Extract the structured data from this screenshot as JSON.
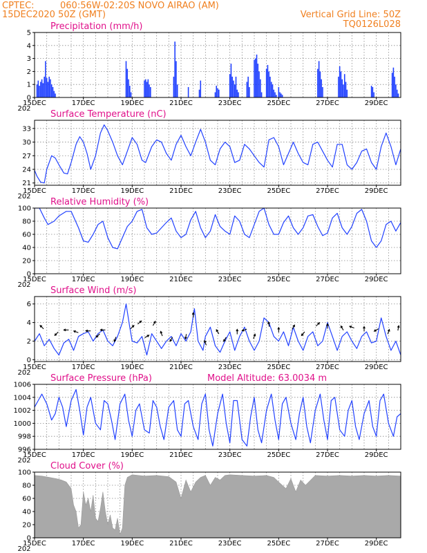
{
  "header": {
    "source": "CPTEC:",
    "location": "060:56W-02:20S   NOVO AIRAO (AM)",
    "run": "15DEC2020 50Z (GMT)",
    "grid_note": "Vertical Grid Line: 50Z",
    "code": "TQ0126L028"
  },
  "colors": {
    "header": "#f08020",
    "title": "#e0108a",
    "series": "#2040ff",
    "cloud": "#a9a9a9",
    "grid": "#888888"
  },
  "x_axis": {
    "ticks": [
      "15DEC",
      "17DEC",
      "19DEC",
      "21DEC",
      "23DEC",
      "25DEC",
      "27DEC",
      "29DEC"
    ],
    "tick_days": [
      15,
      17,
      19,
      21,
      23,
      25,
      27,
      29
    ],
    "range_days": [
      15,
      30
    ],
    "year_stub": "202"
  },
  "chart_data": [
    {
      "type": "bar",
      "title": "Precipitation (mm/h)",
      "ylim": [
        0,
        5
      ],
      "yticks": [
        "0",
        "1",
        "2",
        "3",
        "4",
        "5"
      ],
      "x": [
        15.1,
        15.15,
        15.2,
        15.25,
        15.3,
        15.35,
        15.4,
        15.45,
        15.5,
        15.55,
        15.6,
        15.65,
        15.7,
        15.75,
        15.8,
        15.85,
        18.75,
        18.8,
        18.85,
        18.9,
        18.95,
        19.5,
        19.55,
        19.6,
        19.65,
        19.7,
        19.75,
        20.7,
        20.75,
        20.8,
        20.85,
        21.3,
        21.75,
        21.8,
        22.4,
        22.45,
        22.5,
        22.55,
        23.0,
        23.05,
        23.1,
        23.15,
        23.2,
        23.25,
        23.3,
        23.35,
        23.7,
        23.75,
        23.8,
        24.0,
        24.05,
        24.1,
        24.15,
        24.2,
        24.25,
        24.3,
        24.5,
        24.55,
        24.6,
        24.65,
        24.7,
        24.75,
        24.8,
        24.85,
        24.9,
        25.0,
        25.05,
        25.1,
        25.15,
        26.6,
        26.65,
        26.7,
        26.75,
        26.8,
        27.45,
        27.5,
        27.55,
        27.6,
        27.65,
        27.7,
        27.75,
        27.8,
        28.8,
        28.85,
        28.9,
        29.65,
        29.7,
        29.75,
        29.8,
        29.85,
        29.9
      ],
      "values": [
        1.0,
        1.3,
        0.9,
        1.2,
        1.4,
        1.1,
        1.6,
        2.8,
        1.5,
        1.2,
        1.6,
        1.4,
        1.0,
        0.8,
        0.5,
        0.3,
        2.8,
        2.2,
        1.4,
        0.9,
        0.4,
        1.3,
        1.4,
        1.2,
        1.4,
        1.0,
        0.8,
        1.6,
        4.3,
        2.8,
        1.0,
        0.8,
        0.6,
        1.3,
        0.4,
        0.9,
        0.7,
        0.6,
        1.8,
        2.6,
        1.6,
        1.3,
        1.0,
        1.6,
        0.6,
        0.4,
        1.2,
        1.6,
        0.8,
        2.9,
        3.0,
        3.3,
        2.6,
        2.0,
        1.4,
        0.4,
        2.2,
        2.5,
        2.0,
        1.6,
        1.2,
        1.0,
        0.6,
        0.4,
        0.2,
        0.8,
        0.4,
        0.3,
        0.2,
        2.2,
        2.8,
        2.0,
        1.4,
        0.8,
        1.6,
        2.4,
        2.0,
        1.4,
        1.0,
        1.8,
        1.2,
        0.6,
        0.9,
        0.8,
        0.4,
        1.9,
        2.3,
        1.6,
        1.0,
        0.6,
        0.3
      ]
    },
    {
      "type": "line",
      "title": "Surface Temperature (nC)",
      "ylim": [
        20.5,
        34.8
      ],
      "yticks": [
        "21",
        "24",
        "27",
        "30",
        "33"
      ],
      "ytick_values": [
        21,
        24,
        27,
        30,
        33
      ],
      "x": [
        15.0,
        15.1,
        15.25,
        15.4,
        15.5,
        15.7,
        15.85,
        16.0,
        16.2,
        16.35,
        16.5,
        16.7,
        16.85,
        17.0,
        17.15,
        17.3,
        17.5,
        17.7,
        17.85,
        18.0,
        18.2,
        18.4,
        18.6,
        18.8,
        19.0,
        19.2,
        19.4,
        19.55,
        19.8,
        20.0,
        20.2,
        20.4,
        20.6,
        20.8,
        21.0,
        21.2,
        21.4,
        21.6,
        21.8,
        22.0,
        22.2,
        22.4,
        22.6,
        22.8,
        23.0,
        23.2,
        23.4,
        23.6,
        23.8,
        24.0,
        24.2,
        24.4,
        24.6,
        24.8,
        25.0,
        25.2,
        25.4,
        25.6,
        25.8,
        26.0,
        26.2,
        26.4,
        26.6,
        26.8,
        27.0,
        27.2,
        27.4,
        27.6,
        27.8,
        28.0,
        28.2,
        28.4,
        28.6,
        28.8,
        29.0,
        29.2,
        29.4,
        29.6,
        29.8,
        30.0
      ],
      "values": [
        23.8,
        22.5,
        21.2,
        21.0,
        24.0,
        27.0,
        26.5,
        25.0,
        23.2,
        23.0,
        25.5,
        29.5,
        31.2,
        30.0,
        27.5,
        24.0,
        27.0,
        32.0,
        33.8,
        32.5,
        30.0,
        27.0,
        25.0,
        28.0,
        31.0,
        29.5,
        26.0,
        25.5,
        29.0,
        30.5,
        30.0,
        27.5,
        26.0,
        29.5,
        31.5,
        29.0,
        27.0,
        30.0,
        32.8,
        30.0,
        26.0,
        25.0,
        28.5,
        30.0,
        29.0,
        25.5,
        26.0,
        29.5,
        28.5,
        27.0,
        25.5,
        24.5,
        30.5,
        31.0,
        29.0,
        25.0,
        27.5,
        30.0,
        27.5,
        25.5,
        25.0,
        29.5,
        30.0,
        28.0,
        26.0,
        24.5,
        29.5,
        29.5,
        25.0,
        24.0,
        25.5,
        28.0,
        28.5,
        25.5,
        24.0,
        29.0,
        32.0,
        29.0,
        25.0,
        28.5
      ]
    },
    {
      "type": "line",
      "title": "Relative Humidity (%)",
      "ylim": [
        0,
        100
      ],
      "yticks": [
        "0",
        "20",
        "40",
        "60",
        "80",
        "100"
      ],
      "ytick_values": [
        0,
        20,
        40,
        60,
        80,
        100
      ],
      "x": [
        15.0,
        15.2,
        15.4,
        15.55,
        15.8,
        16.0,
        16.3,
        16.5,
        16.8,
        17.0,
        17.2,
        17.4,
        17.6,
        17.8,
        18.0,
        18.2,
        18.4,
        18.6,
        18.8,
        19.0,
        19.2,
        19.4,
        19.6,
        19.8,
        20.0,
        20.2,
        20.4,
        20.6,
        20.8,
        21.0,
        21.2,
        21.4,
        21.6,
        21.8,
        22.0,
        22.2,
        22.4,
        22.6,
        22.8,
        23.0,
        23.2,
        23.4,
        23.6,
        23.8,
        24.0,
        24.2,
        24.4,
        24.6,
        24.8,
        25.0,
        25.2,
        25.4,
        25.6,
        25.8,
        26.0,
        26.2,
        26.4,
        26.6,
        26.8,
        27.0,
        27.2,
        27.4,
        27.6,
        27.8,
        28.0,
        28.2,
        28.4,
        28.6,
        28.8,
        29.0,
        29.2,
        29.4,
        29.6,
        29.8,
        30.0
      ],
      "values": [
        100,
        100,
        85,
        75,
        80,
        88,
        95,
        95,
        70,
        50,
        48,
        60,
        75,
        80,
        55,
        40,
        38,
        55,
        72,
        80,
        95,
        98,
        70,
        60,
        62,
        70,
        78,
        85,
        65,
        55,
        60,
        82,
        95,
        70,
        55,
        65,
        90,
        72,
        65,
        60,
        88,
        80,
        60,
        55,
        75,
        95,
        100,
        75,
        60,
        60,
        78,
        88,
        70,
        60,
        70,
        88,
        90,
        72,
        58,
        62,
        85,
        92,
        70,
        60,
        72,
        92,
        98,
        80,
        50,
        40,
        50,
        75,
        80,
        65,
        78
      ]
    },
    {
      "type": "line",
      "title": "Surface Wind (m/s)",
      "ylim": [
        -0.2,
        6.8
      ],
      "yticks": [
        "0",
        "2",
        "4",
        "6"
      ],
      "ytick_values": [
        0,
        2,
        4,
        6
      ],
      "x": [
        15.0,
        15.2,
        15.4,
        15.6,
        15.8,
        16.0,
        16.2,
        16.4,
        16.6,
        16.8,
        17.0,
        17.2,
        17.4,
        17.6,
        17.8,
        18.0,
        18.2,
        18.4,
        18.6,
        18.75,
        18.9,
        19.0,
        19.2,
        19.4,
        19.6,
        19.8,
        20.0,
        20.2,
        20.4,
        20.6,
        20.8,
        21.0,
        21.2,
        21.4,
        21.55,
        21.7,
        21.9,
        22.0,
        22.2,
        22.4,
        22.6,
        22.8,
        23.0,
        23.2,
        23.4,
        23.6,
        23.8,
        24.0,
        24.2,
        24.4,
        24.6,
        24.8,
        25.0,
        25.2,
        25.4,
        25.6,
        25.8,
        26.0,
        26.2,
        26.4,
        26.6,
        26.8,
        27.0,
        27.2,
        27.4,
        27.6,
        27.8,
        28.0,
        28.2,
        28.4,
        28.6,
        28.8,
        29.0,
        29.2,
        29.4,
        29.6,
        29.8,
        30.0
      ],
      "values": [
        2.0,
        2.8,
        1.5,
        2.2,
        1.2,
        0.5,
        1.8,
        2.2,
        1.0,
        2.5,
        2.8,
        3.0,
        2.0,
        2.8,
        3.2,
        2.0,
        1.5,
        2.5,
        4.0,
        6.0,
        3.5,
        2.0,
        1.8,
        2.5,
        0.5,
        2.8,
        2.0,
        1.2,
        2.0,
        2.5,
        1.5,
        2.8,
        2.0,
        3.0,
        5.5,
        2.0,
        1.0,
        2.5,
        3.5,
        1.5,
        0.8,
        2.0,
        3.0,
        1.0,
        2.5,
        3.5,
        2.0,
        1.0,
        2.0,
        4.5,
        4.0,
        2.5,
        2.0,
        3.0,
        1.5,
        3.5,
        2.0,
        1.0,
        2.5,
        3.0,
        1.5,
        2.0,
        4.0,
        2.5,
        1.0,
        2.5,
        3.0,
        2.0,
        1.2,
        2.5,
        3.0,
        1.8,
        2.0,
        4.5,
        2.5,
        1.0,
        2.0,
        0.5
      ]
    },
    {
      "type": "line",
      "title": "Surface Pressure (hPa)",
      "annotation": "Model Altitude: 63.0034 m",
      "ylim": [
        996,
        1006
      ],
      "yticks": [
        "996",
        "998",
        "1000",
        "1002",
        "1004",
        "1006"
      ],
      "ytick_values": [
        996,
        998,
        1000,
        1002,
        1004,
        1006
      ],
      "x": [
        15.0,
        15.15,
        15.3,
        15.5,
        15.7,
        15.85,
        16.0,
        16.15,
        16.3,
        16.5,
        16.7,
        16.85,
        17.0,
        17.15,
        17.3,
        17.5,
        17.7,
        17.85,
        18.0,
        18.15,
        18.3,
        18.5,
        18.7,
        18.85,
        19.0,
        19.15,
        19.3,
        19.5,
        19.7,
        19.85,
        20.0,
        20.15,
        20.3,
        20.5,
        20.7,
        20.85,
        21.0,
        21.15,
        21.3,
        21.5,
        21.7,
        21.85,
        22.0,
        22.15,
        22.3,
        22.5,
        22.7,
        22.85,
        23.0,
        23.15,
        23.3,
        23.5,
        23.7,
        23.85,
        24.0,
        24.15,
        24.3,
        24.5,
        24.7,
        24.85,
        25.0,
        25.15,
        25.3,
        25.5,
        25.7,
        25.85,
        26.0,
        26.15,
        26.3,
        26.5,
        26.7,
        26.85,
        27.0,
        27.15,
        27.3,
        27.5,
        27.7,
        27.85,
        28.0,
        28.15,
        28.3,
        28.5,
        28.7,
        28.85,
        29.0,
        29.15,
        29.3,
        29.5,
        29.7,
        29.85,
        30.0
      ],
      "values": [
        1002.5,
        1003.5,
        1004.5,
        1003.0,
        1000.5,
        1001.5,
        1004.0,
        1002.5,
        999.5,
        1003.5,
        1005.2,
        1002.0,
        998.2,
        1002.5,
        1004.0,
        1000.0,
        999.0,
        1003.5,
        1003.0,
        1000.5,
        997.5,
        1003.0,
        1004.5,
        1000.5,
        998.0,
        1002.0,
        1003.0,
        999.0,
        998.5,
        1003.5,
        1002.5,
        999.5,
        997.5,
        1002.5,
        1003.5,
        999.0,
        998.0,
        1003.0,
        1003.5,
        999.5,
        997.5,
        1003.0,
        1004.5,
        999.0,
        996.5,
        1001.5,
        1004.5,
        1000.0,
        997.0,
        1003.5,
        1003.5,
        997.5,
        996.5,
        1001.0,
        1004.0,
        999.0,
        997.0,
        1002.0,
        1004.5,
        1000.5,
        997.5,
        1003.0,
        1004.0,
        1000.0,
        997.5,
        1001.5,
        1004.0,
        999.5,
        997.0,
        1002.0,
        1004.5,
        1000.5,
        997.5,
        1003.5,
        1004.0,
        999.0,
        998.0,
        1002.0,
        1003.5,
        999.5,
        997.5,
        1001.5,
        1003.5,
        999.5,
        998.0,
        1003.5,
        1004.5,
        1000.0,
        998.0,
        1001.0,
        1001.5
      ]
    },
    {
      "type": "area",
      "title": "Cloud Cover (%)",
      "ylim": [
        0,
        100
      ],
      "yticks": [
        "0",
        "20",
        "40",
        "60",
        "80",
        "100"
      ],
      "ytick_values": [
        0,
        20,
        40,
        60,
        80,
        100
      ],
      "x": [
        15.0,
        15.3,
        15.6,
        15.9,
        16.1,
        16.3,
        16.5,
        16.6,
        16.7,
        16.8,
        16.9,
        17.0,
        17.1,
        17.2,
        17.3,
        17.4,
        17.5,
        17.6,
        17.7,
        17.8,
        17.9,
        18.0,
        18.1,
        18.2,
        18.3,
        18.4,
        18.5,
        18.6,
        18.7,
        18.8,
        19.0,
        19.5,
        20.0,
        20.5,
        20.8,
        21.0,
        21.2,
        21.4,
        21.6,
        21.8,
        22.0,
        22.2,
        22.4,
        22.6,
        22.8,
        23.0,
        23.5,
        24.0,
        24.5,
        24.8,
        25.0,
        25.3,
        25.5,
        25.7,
        25.9,
        26.1,
        26.5,
        27.0,
        27.5,
        28.0,
        28.5,
        29.0,
        29.5,
        30.0
      ],
      "values": [
        95,
        94,
        92,
        90,
        88,
        85,
        75,
        50,
        40,
        15,
        20,
        70,
        50,
        60,
        40,
        65,
        30,
        25,
        45,
        70,
        40,
        20,
        35,
        15,
        12,
        30,
        5,
        15,
        80,
        92,
        96,
        94,
        95,
        93,
        85,
        60,
        88,
        70,
        85,
        92,
        95,
        80,
        92,
        88,
        95,
        96,
        95,
        94,
        95,
        92,
        85,
        75,
        90,
        70,
        88,
        80,
        95,
        94,
        95,
        94,
        95,
        94,
        95,
        94
      ]
    }
  ],
  "wind_vectors": [
    {
      "day": 15.3,
      "speed": 3.5,
      "angle": -135
    },
    {
      "day": 15.9,
      "speed": 2.8,
      "angle": 135
    },
    {
      "day": 16.3,
      "speed": 3.2,
      "angle": 180
    },
    {
      "day": 16.7,
      "speed": 3.0,
      "angle": 200
    },
    {
      "day": 17.2,
      "speed": 3.1,
      "angle": 180
    },
    {
      "day": 17.6,
      "speed": 2.6,
      "angle": 135
    },
    {
      "day": 17.8,
      "speed": 3.2,
      "angle": 180
    },
    {
      "day": 18.3,
      "speed": 2.2,
      "angle": 110
    },
    {
      "day": 19.0,
      "speed": 3.5,
      "angle": -45
    },
    {
      "day": 19.3,
      "speed": 4.0,
      "angle": -40
    },
    {
      "day": 19.6,
      "speed": 2.5,
      "angle": -30
    },
    {
      "day": 19.9,
      "speed": 3.9,
      "angle": -60
    },
    {
      "day": 20.2,
      "speed": 2.8,
      "angle": -110
    },
    {
      "day": 20.6,
      "speed": 2.2,
      "angle": 120
    },
    {
      "day": 21.2,
      "speed": 2.5,
      "angle": 100
    },
    {
      "day": 21.5,
      "speed": 4.8,
      "angle": -90
    },
    {
      "day": 22.0,
      "speed": 1.8,
      "angle": -110
    },
    {
      "day": 22.5,
      "speed": 3.0,
      "angle": -120
    },
    {
      "day": 22.8,
      "speed": 2.2,
      "angle": 120
    },
    {
      "day": 23.3,
      "speed": 3.0,
      "angle": -90
    },
    {
      "day": 23.6,
      "speed": 3.2,
      "angle": 160
    },
    {
      "day": 24.0,
      "speed": 2.5,
      "angle": -70
    },
    {
      "day": 24.6,
      "speed": 3.8,
      "angle": -100
    },
    {
      "day": 25.0,
      "speed": 3.2,
      "angle": -90
    },
    {
      "day": 25.6,
      "speed": 3.5,
      "angle": -60
    },
    {
      "day": 26.0,
      "speed": 2.8,
      "angle": 130
    },
    {
      "day": 26.6,
      "speed": 3.8,
      "angle": -45
    },
    {
      "day": 27.0,
      "speed": 3.6,
      "angle": -90
    },
    {
      "day": 27.6,
      "speed": 3.4,
      "angle": -120
    },
    {
      "day": 28.0,
      "speed": 3.5,
      "angle": -160
    },
    {
      "day": 28.5,
      "speed": 3.3,
      "angle": -90
    },
    {
      "day": 29.0,
      "speed": 3.2,
      "angle": 150
    },
    {
      "day": 29.5,
      "speed": 3.0,
      "angle": -70
    },
    {
      "day": 29.9,
      "speed": 3.4,
      "angle": -80
    }
  ]
}
